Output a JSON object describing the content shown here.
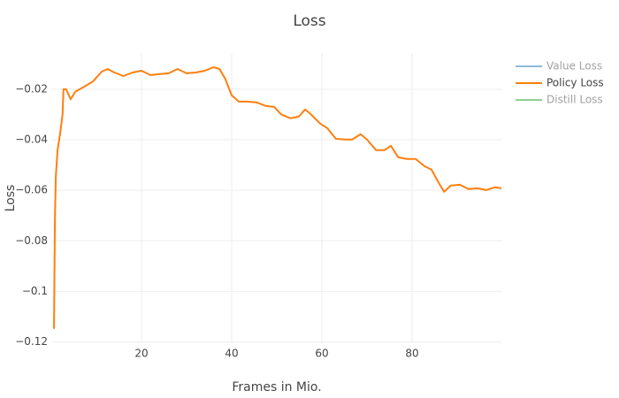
{
  "chart_data": {
    "type": "line",
    "title": "Loss",
    "x_label": "Frames in Mio.",
    "y_label": "Loss",
    "x": [
      0.6,
      0.8,
      1,
      1.4,
      2,
      2.5,
      2.7,
      3.3,
      4.3,
      5.3,
      7.3,
      9.2,
      11.2,
      12.5,
      14,
      16,
      18,
      20,
      22,
      24,
      26,
      28,
      30,
      32,
      34,
      36,
      37.3,
      38.6,
      40,
      41.6,
      43.5,
      45.5,
      47.5,
      49.4,
      51,
      53,
      54.9,
      56.3,
      57.6,
      59.6,
      61.2,
      63.1,
      65.1,
      66.7,
      68.6,
      70,
      72,
      73.9,
      75.3,
      76.9,
      78.8,
      80.8,
      82.7,
      84.3,
      85.7,
      87.1,
      88.6,
      90.6,
      92.5,
      94.5,
      96.5,
      98.4,
      99.8
    ],
    "series": [
      {
        "name": "Value Loss",
        "color": "#1f77b4",
        "visible": false
      },
      {
        "name": "Policy Loss",
        "color": "#ff7f0e",
        "visible": true,
        "values": [
          -0.1148,
          -0.072,
          -0.0546,
          -0.044,
          -0.037,
          -0.03,
          -0.02,
          -0.02,
          -0.024,
          -0.021,
          -0.019,
          -0.017,
          -0.013,
          -0.012,
          -0.0134,
          -0.0148,
          -0.0134,
          -0.0127,
          -0.0144,
          -0.014,
          -0.0137,
          -0.012,
          -0.0137,
          -0.0134,
          -0.0127,
          -0.0113,
          -0.012,
          -0.016,
          -0.0224,
          -0.0249,
          -0.0249,
          -0.0252,
          -0.0266,
          -0.027,
          -0.03,
          -0.0315,
          -0.0308,
          -0.028,
          -0.03,
          -0.0336,
          -0.0354,
          -0.0396,
          -0.0399,
          -0.0399,
          -0.0378,
          -0.0399,
          -0.0441,
          -0.0441,
          -0.0424,
          -0.0469,
          -0.0476,
          -0.0476,
          -0.0504,
          -0.0518,
          -0.0564,
          -0.0606,
          -0.0581,
          -0.0578,
          -0.0595,
          -0.0592,
          -0.0599,
          -0.0588,
          -0.0592
        ]
      },
      {
        "name": "Distill Loss",
        "color": "#2ca02c",
        "visible": false
      }
    ],
    "xlim": [
      0,
      100
    ],
    "xticks": [
      20,
      40,
      60,
      80
    ],
    "ylim": [
      -0.1205,
      -0.0057
    ],
    "yticks": [
      {
        "value": -0.12,
        "label": "−0.12"
      },
      {
        "value": -0.1,
        "label": "−0.1"
      },
      {
        "value": -0.08,
        "label": "−0.08"
      },
      {
        "value": -0.06,
        "label": "−0.06"
      },
      {
        "value": -0.04,
        "label": "−0.04"
      },
      {
        "value": -0.02,
        "label": "−0.02"
      }
    ],
    "grid": true
  }
}
